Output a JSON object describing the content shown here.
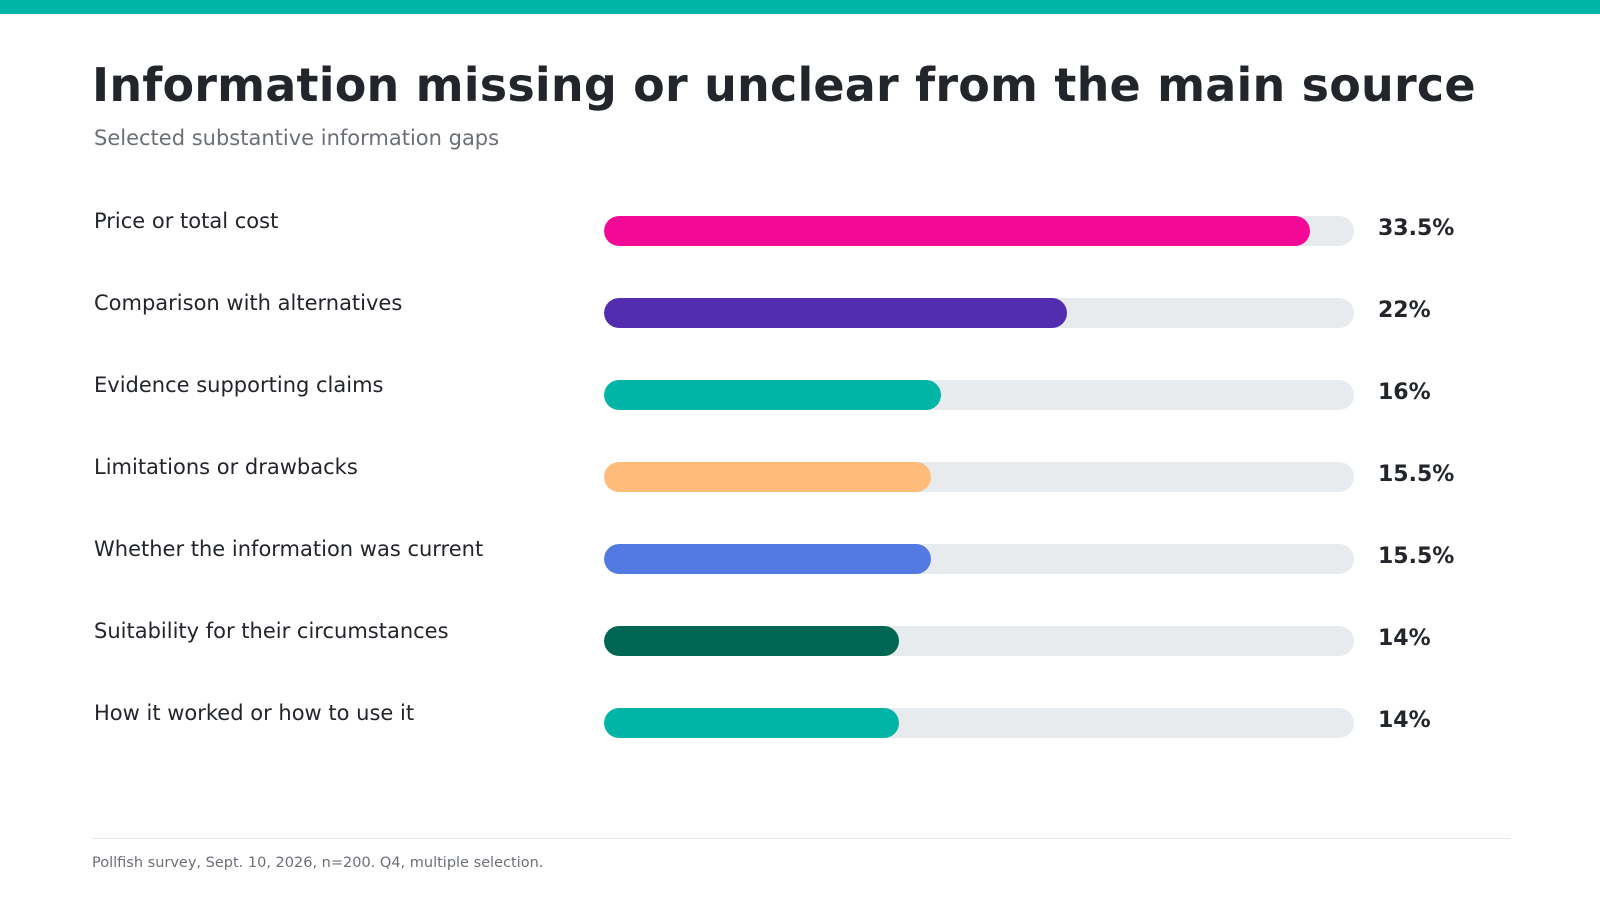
{
  "header": {
    "title": "Information missing or unclear from the main source",
    "subtitle": "Selected substantive information gaps"
  },
  "footer": {
    "note": "Pollfish survey, Sept. 10, 2026, n=200. Q4, multiple selection."
  },
  "colors": {
    "accent": "#00b5a5",
    "track": "#e8ebee"
  },
  "chart_data": {
    "type": "bar",
    "orientation": "horizontal",
    "title": "Information missing or unclear from the main source",
    "subtitle": "Selected substantive information gaps",
    "xlim": [
      0,
      35.6
    ],
    "grid": false,
    "categories": [
      "Price or total cost",
      "Comparison with alternatives",
      "Evidence supporting claims",
      "Limitations or drawbacks",
      "Whether the information was current",
      "Suitability for their circumstances",
      "How it worked or how to use it"
    ],
    "values": [
      33.5,
      22,
      16,
      15.5,
      15.5,
      14,
      14
    ],
    "value_labels": [
      "33.5%",
      "22%",
      "16%",
      "15.5%",
      "15.5%",
      "14%",
      "14%"
    ],
    "bar_colors": [
      "#f20a97",
      "#522db0",
      "#00b5a5",
      "#ffbb7a",
      "#527ae0",
      "#006654",
      "#00b5a5"
    ]
  }
}
